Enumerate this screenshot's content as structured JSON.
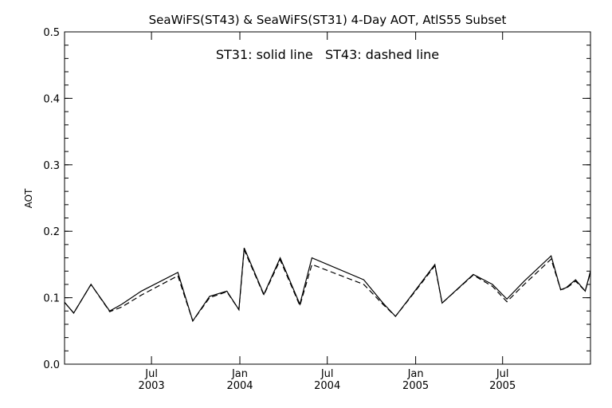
{
  "chart_data": {
    "type": "line",
    "title": "SeaWiFS(ST43) & SeaWiFS(ST31) 4-Day AOT, AtlS55 Subset",
    "annotation": "ST31: solid line   ST43: dashed line",
    "ylabel": "AOT",
    "xlabel": "",
    "ylim": [
      0.0,
      0.5
    ],
    "y_ticks": [
      "0.0",
      "0.1",
      "0.2",
      "0.3",
      "0.4",
      "0.5"
    ],
    "x_range": [
      "2003-01-01",
      "2005-12-31"
    ],
    "x_ticks": [
      {
        "date": "2003-07-01",
        "month": "Jul",
        "year": "2003"
      },
      {
        "date": "2004-01-01",
        "month": "Jan",
        "year": "2004"
      },
      {
        "date": "2004-07-01",
        "month": "Jul",
        "year": "2004"
      },
      {
        "date": "2005-01-01",
        "month": "Jan",
        "year": "2005"
      },
      {
        "date": "2005-07-01",
        "month": "Jul",
        "year": "2005"
      }
    ],
    "grid": false,
    "line_color": "#000000",
    "series": [
      {
        "name": "ST31",
        "style": "solid",
        "points": [
          [
            "2003-01-01",
            0.093
          ],
          [
            "2003-01-20",
            0.077
          ],
          [
            "2003-02-25",
            0.12
          ],
          [
            "2003-04-05",
            0.08
          ],
          [
            "2003-04-30",
            0.09
          ],
          [
            "2003-06-10",
            0.11
          ],
          [
            "2003-08-25",
            0.138
          ],
          [
            "2003-09-25",
            0.065
          ],
          [
            "2003-10-30",
            0.102
          ],
          [
            "2003-12-05",
            0.11
          ],
          [
            "2003-12-30",
            0.082
          ],
          [
            "2004-01-10",
            0.175
          ],
          [
            "2004-02-20",
            0.105
          ],
          [
            "2004-03-25",
            0.16
          ],
          [
            "2004-05-05",
            0.09
          ],
          [
            "2004-05-30",
            0.16
          ],
          [
            "2004-09-15",
            0.127
          ],
          [
            "2004-10-25",
            0.092
          ],
          [
            "2004-11-20",
            0.072
          ],
          [
            "2004-12-25",
            0.105
          ],
          [
            "2005-02-10",
            0.15
          ],
          [
            "2005-02-25",
            0.092
          ],
          [
            "2005-05-01",
            0.135
          ],
          [
            "2005-06-10",
            0.12
          ],
          [
            "2005-07-10",
            0.098
          ],
          [
            "2005-08-15",
            0.125
          ],
          [
            "2005-10-10",
            0.163
          ],
          [
            "2005-10-30",
            0.112
          ],
          [
            "2005-11-10",
            0.115
          ],
          [
            "2005-11-30",
            0.127
          ],
          [
            "2005-12-20",
            0.11
          ],
          [
            "2005-12-31",
            0.14
          ]
        ]
      },
      {
        "name": "ST43",
        "style": "dashed",
        "points": [
          [
            "2003-01-01",
            0.093
          ],
          [
            "2003-01-20",
            0.077
          ],
          [
            "2003-02-25",
            0.12
          ],
          [
            "2003-04-05",
            0.079
          ],
          [
            "2003-04-30",
            0.086
          ],
          [
            "2003-06-10",
            0.104
          ],
          [
            "2003-08-25",
            0.133
          ],
          [
            "2003-09-25",
            0.065
          ],
          [
            "2003-10-30",
            0.1
          ],
          [
            "2003-12-05",
            0.109
          ],
          [
            "2003-12-30",
            0.082
          ],
          [
            "2004-01-10",
            0.172
          ],
          [
            "2004-02-20",
            0.104
          ],
          [
            "2004-03-25",
            0.157
          ],
          [
            "2004-05-05",
            0.088
          ],
          [
            "2004-05-30",
            0.15
          ],
          [
            "2004-09-15",
            0.12
          ],
          [
            "2004-10-25",
            0.09
          ],
          [
            "2004-11-20",
            0.072
          ],
          [
            "2004-12-25",
            0.104
          ],
          [
            "2005-02-10",
            0.148
          ],
          [
            "2005-02-25",
            0.092
          ],
          [
            "2005-05-01",
            0.134
          ],
          [
            "2005-06-10",
            0.117
          ],
          [
            "2005-07-10",
            0.094
          ],
          [
            "2005-08-15",
            0.12
          ],
          [
            "2005-10-10",
            0.158
          ],
          [
            "2005-10-30",
            0.112
          ],
          [
            "2005-11-10",
            0.114
          ],
          [
            "2005-11-30",
            0.125
          ],
          [
            "2005-12-20",
            0.11
          ],
          [
            "2005-12-31",
            0.138
          ]
        ]
      }
    ]
  }
}
